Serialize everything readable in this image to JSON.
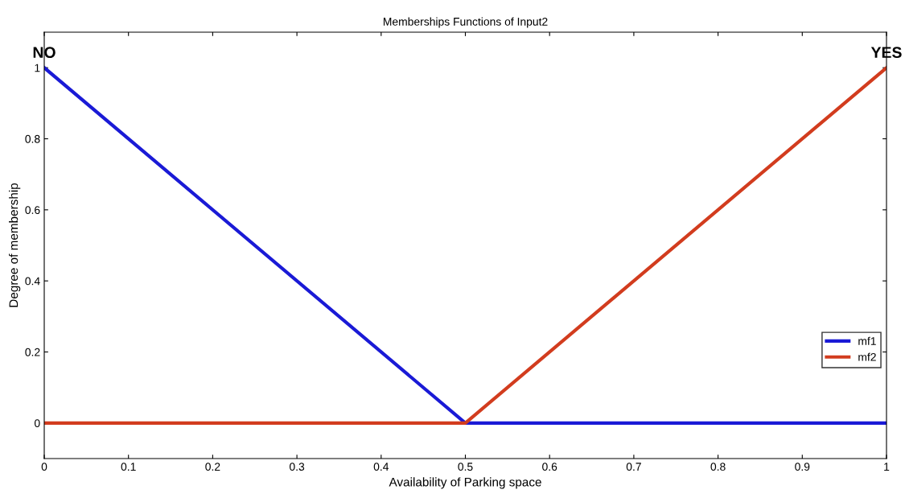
{
  "chart_data": {
    "type": "line",
    "title": "Memberships Functions of Input2",
    "xlabel": "Availability of Parking space",
    "ylabel": "Degree of membership",
    "x": [
      0,
      0.5,
      1
    ],
    "series": [
      {
        "name": "mf1",
        "color": "#1a1ad6",
        "values": [
          1,
          0,
          0
        ]
      },
      {
        "name": "mf2",
        "color": "#d23c1e",
        "values": [
          0,
          0,
          1
        ]
      }
    ],
    "xlim": [
      0,
      1
    ],
    "xticks": [
      0,
      0.1,
      0.2,
      0.3,
      0.4,
      0.5,
      0.6,
      0.7,
      0.8,
      0.9,
      1
    ],
    "ylim": [
      -0.1,
      1.1
    ],
    "yticks": [
      0,
      0.2,
      0.4,
      0.6,
      0.8,
      1
    ],
    "annotations": [
      {
        "text": "NO",
        "x": 0,
        "y": 1
      },
      {
        "text": "YES",
        "x": 1,
        "y": 1
      }
    ],
    "grid": false,
    "legend": "lower right",
    "marker": "none",
    "line_style": "solid"
  }
}
